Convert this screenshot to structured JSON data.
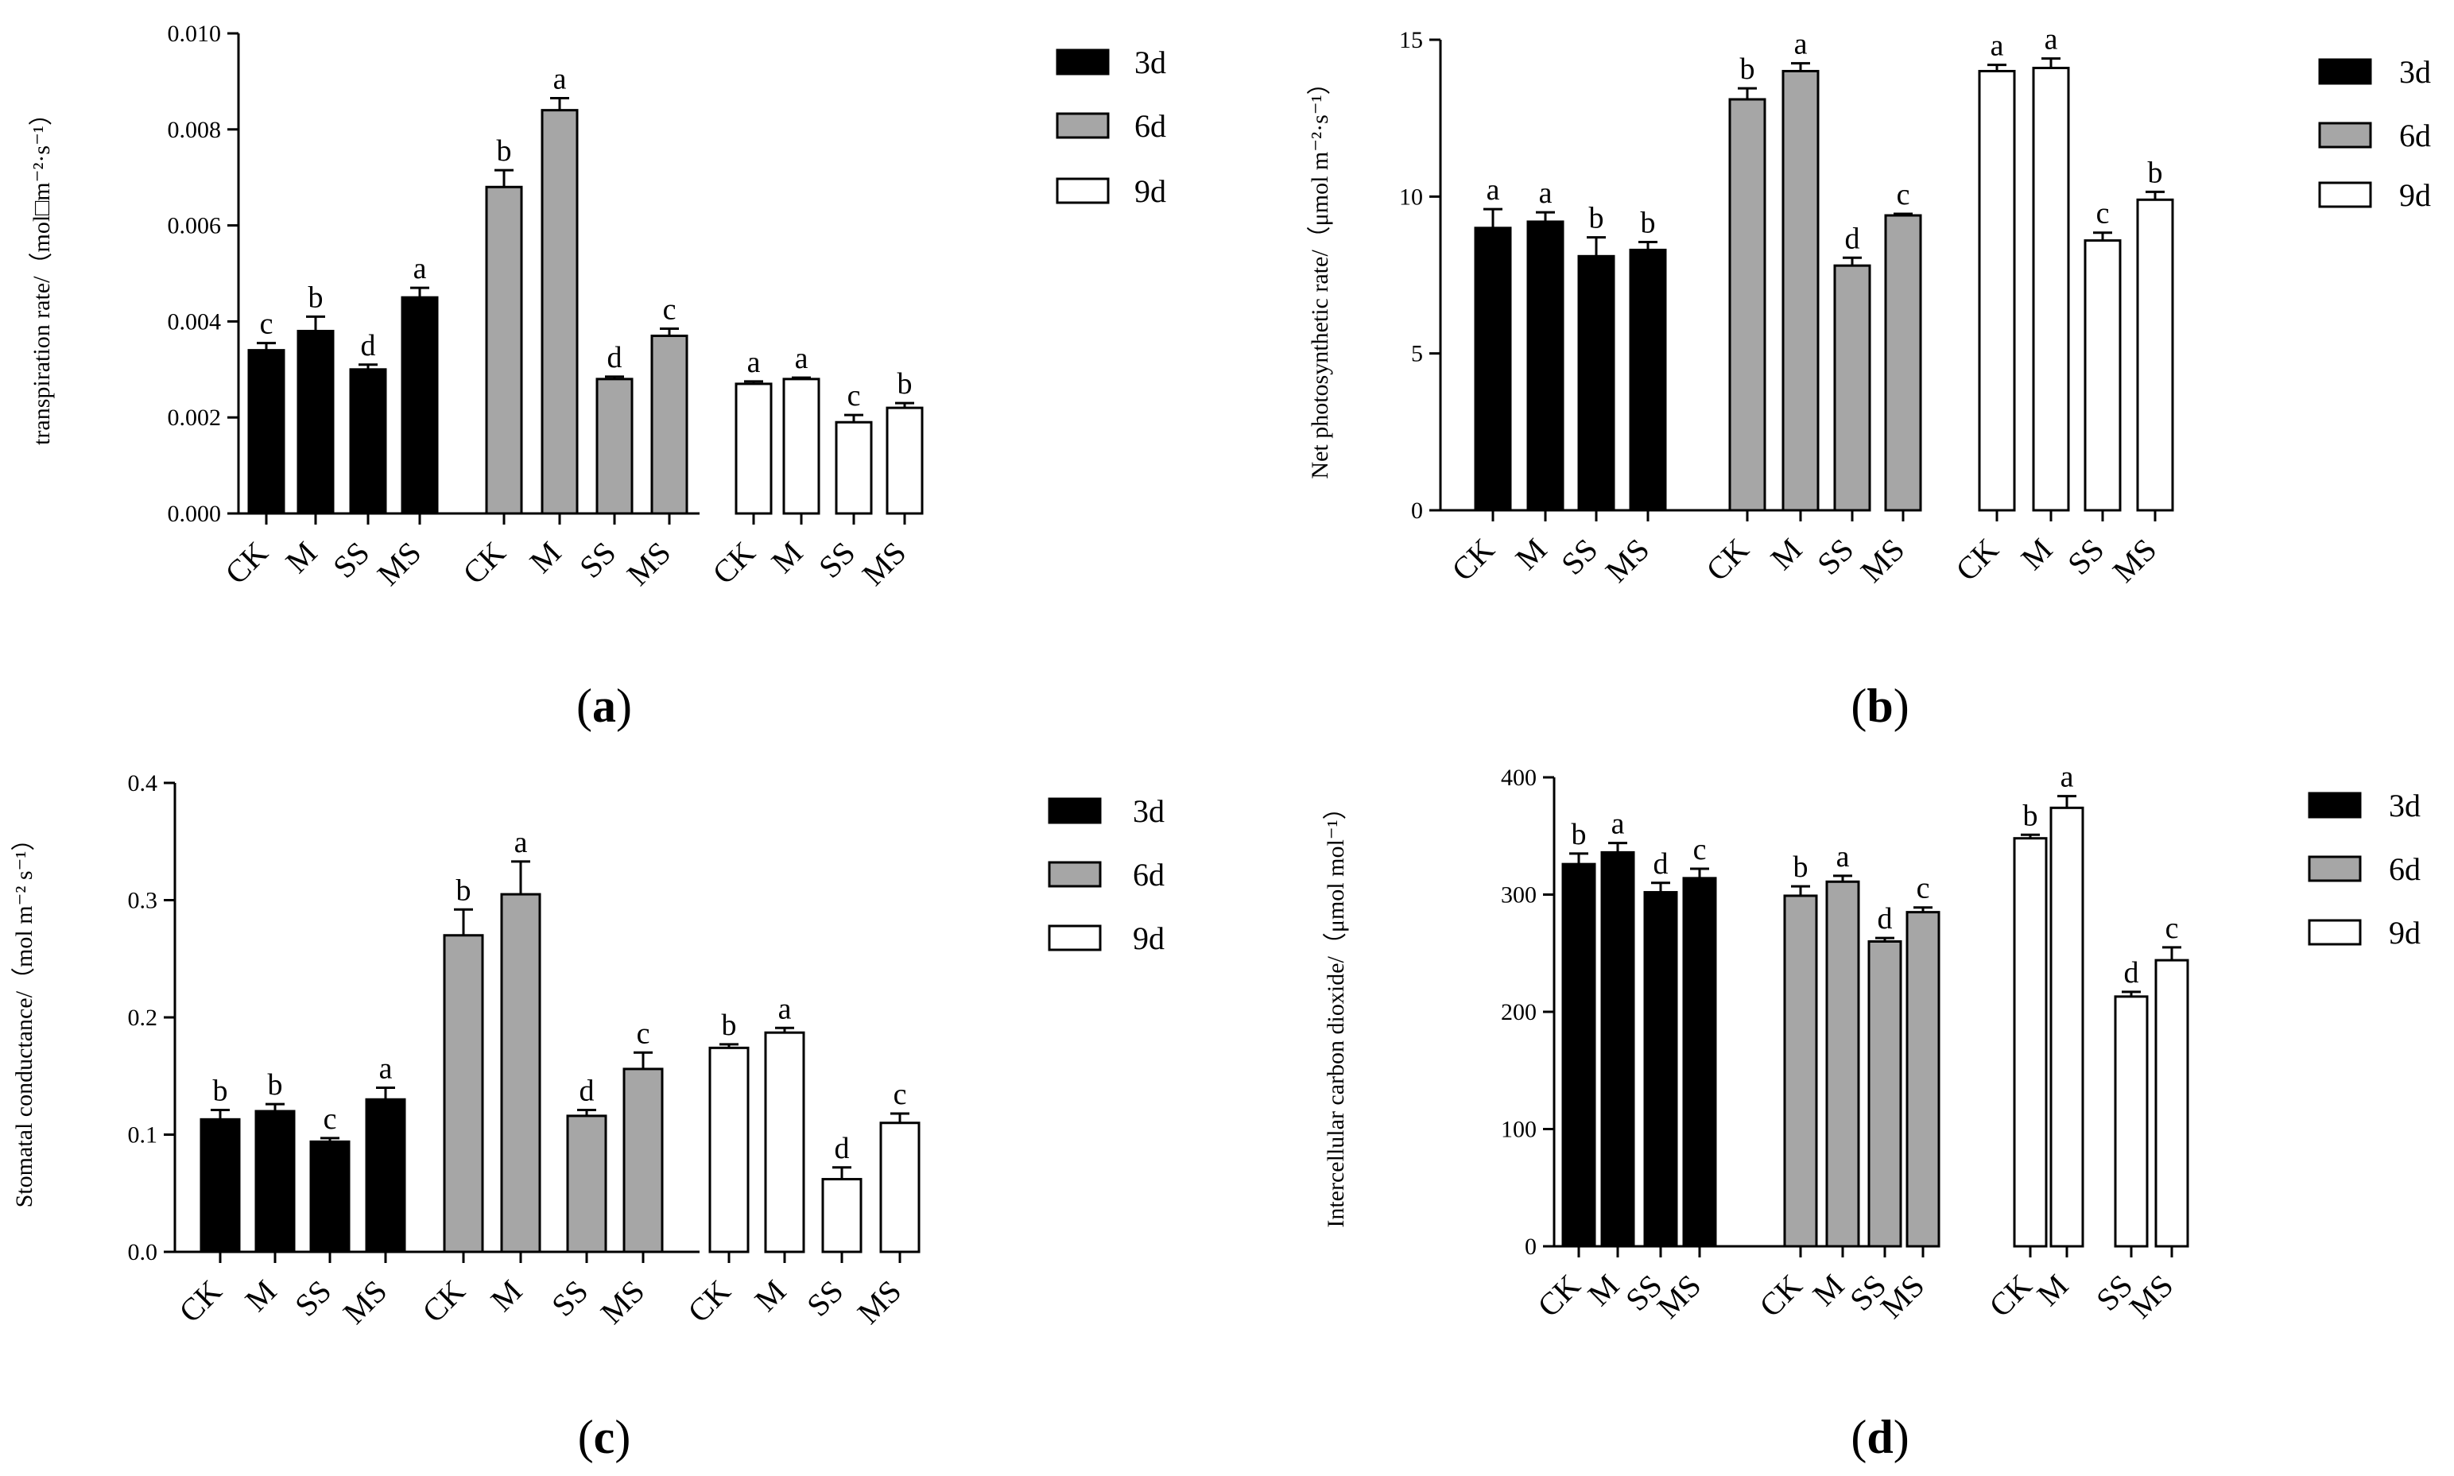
{
  "colors": {
    "3d": "#000000",
    "6d": "#a6a6a6",
    "9d": "#ffffff",
    "stroke": "#000000"
  },
  "chart_data": [
    {
      "id": "a",
      "type": "bar",
      "caption_letter": "a",
      "ylabel": "transpiration rate/（mol□m⁻²·s⁻¹）",
      "ylim": [
        0,
        0.01
      ],
      "yticks": [
        "0.000",
        "0.002",
        "0.004",
        "0.006",
        "0.008",
        "0.010"
      ],
      "ytick_values": [
        0,
        0.002,
        0.004,
        0.006,
        0.008,
        0.01
      ],
      "categories": [
        "CK",
        "M",
        "SS",
        "MS"
      ],
      "legend": [
        "3d",
        "6d",
        "9d"
      ],
      "series": [
        {
          "name": "3d",
          "values": [
            0.0034,
            0.0038,
            0.003,
            0.0045
          ],
          "errors": [
            0.00015,
            0.0003,
            0.0001,
            0.0002
          ],
          "labels": [
            "c",
            "b",
            "d",
            "a"
          ]
        },
        {
          "name": "6d",
          "values": [
            0.0068,
            0.0084,
            0.0028,
            0.0037
          ],
          "errors": [
            0.00035,
            0.00025,
            5e-05,
            0.00015
          ],
          "labels": [
            "b",
            "a",
            "d",
            "c"
          ]
        },
        {
          "name": "9d",
          "values": [
            0.0027,
            0.0028,
            0.0019,
            0.0022
          ],
          "errors": [
            5e-05,
            3e-05,
            0.00015,
            0.0001
          ],
          "labels": [
            "a",
            "a",
            "c",
            "b"
          ]
        }
      ]
    },
    {
      "id": "b",
      "type": "bar",
      "caption_letter": "b",
      "ylabel": "Net photosynthetic rate/（μmol m⁻²·s⁻¹）",
      "ylim": [
        0,
        15
      ],
      "yticks": [
        "0",
        "5",
        "10",
        "15"
      ],
      "ytick_values": [
        0,
        5,
        10,
        15
      ],
      "categories": [
        "CK",
        "M",
        "SS",
        "MS"
      ],
      "legend": [
        "3d",
        "6d",
        "9d"
      ],
      "series": [
        {
          "name": "3d",
          "values": [
            9.0,
            9.2,
            8.1,
            8.3
          ],
          "errors": [
            0.6,
            0.3,
            0.6,
            0.25
          ],
          "labels": [
            "a",
            "a",
            "b",
            "b"
          ]
        },
        {
          "name": "6d",
          "values": [
            13.1,
            14.0,
            7.8,
            9.4
          ],
          "errors": [
            0.35,
            0.25,
            0.25,
            0.05
          ],
          "labels": [
            "b",
            "a",
            "d",
            "c"
          ]
        },
        {
          "name": "9d",
          "values": [
            14.0,
            14.1,
            8.6,
            9.9
          ],
          "errors": [
            0.2,
            0.3,
            0.25,
            0.25
          ],
          "labels": [
            "a",
            "a",
            "c",
            "b"
          ]
        }
      ]
    },
    {
      "id": "c",
      "type": "bar",
      "caption_letter": "c",
      "ylabel": "Stomatal conductance/（mol m⁻² s⁻¹）",
      "ylim": [
        0,
        0.4
      ],
      "yticks": [
        "0.0",
        "0.1",
        "0.2",
        "0.3",
        "0.4"
      ],
      "ytick_values": [
        0,
        0.1,
        0.2,
        0.3,
        0.4
      ],
      "categories": [
        "CK",
        "M",
        "SS",
        "MS"
      ],
      "legend": [
        "3d",
        "6d",
        "9d"
      ],
      "series": [
        {
          "name": "3d",
          "values": [
            0.113,
            0.12,
            0.094,
            0.13
          ],
          "errors": [
            0.008,
            0.006,
            0.003,
            0.01
          ],
          "labels": [
            "b",
            "b",
            "c",
            "a"
          ]
        },
        {
          "name": "6d",
          "values": [
            0.27,
            0.305,
            0.116,
            0.156
          ],
          "errors": [
            0.022,
            0.028,
            0.005,
            0.014
          ],
          "labels": [
            "b",
            "a",
            "d",
            "c"
          ]
        },
        {
          "name": "9d",
          "values": [
            0.174,
            0.187,
            0.062,
            0.11
          ],
          "errors": [
            0.003,
            0.004,
            0.01,
            0.008
          ],
          "labels": [
            "b",
            "a",
            "d",
            "c"
          ]
        }
      ]
    },
    {
      "id": "d",
      "type": "bar",
      "caption_letter": "d",
      "ylabel": "Intercellular carbon dioxide/（μmol mol⁻¹）",
      "ylim": [
        0,
        400
      ],
      "yticks": [
        "0",
        "100",
        "200",
        "300",
        "400"
      ],
      "ytick_values": [
        0,
        100,
        200,
        300,
        400
      ],
      "categories": [
        "CK",
        "M",
        "SS",
        "MS"
      ],
      "legend": [
        "3d",
        "6d",
        "9d"
      ],
      "series": [
        {
          "name": "3d",
          "values": [
            326,
            336,
            302,
            314
          ],
          "errors": [
            9,
            8,
            8,
            8
          ],
          "labels": [
            "b",
            "a",
            "d",
            "c"
          ]
        },
        {
          "name": "6d",
          "values": [
            299,
            311,
            260,
            285
          ],
          "errors": [
            8,
            5,
            3,
            4
          ],
          "labels": [
            "b",
            "a",
            "d",
            "c"
          ]
        },
        {
          "name": "9d",
          "values": [
            348,
            374,
            213,
            244
          ],
          "errors": [
            3,
            10,
            4,
            11
          ],
          "labels": [
            "b",
            "a",
            "d",
            "c"
          ]
        }
      ]
    }
  ]
}
